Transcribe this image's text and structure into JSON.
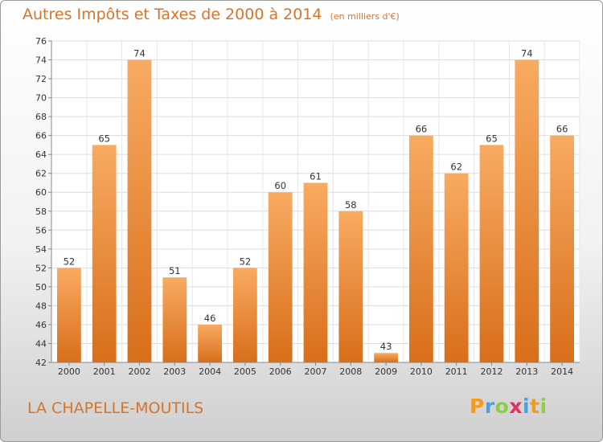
{
  "chart_data": {
    "type": "bar",
    "title": "Autres Impôts et Taxes de 2000 à 2014",
    "subtitle": "(en milliers d'€)",
    "categories": [
      "2000",
      "2001",
      "2002",
      "2003",
      "2004",
      "2005",
      "2006",
      "2007",
      "2008",
      "2009",
      "2010",
      "2011",
      "2012",
      "2013",
      "2014"
    ],
    "values": [
      52,
      65,
      74,
      51,
      46,
      52,
      60,
      61,
      58,
      43,
      66,
      62,
      65,
      74,
      66
    ],
    "ylim": [
      42,
      76
    ],
    "y_ticks": [
      42,
      44,
      46,
      48,
      50,
      52,
      54,
      56,
      58,
      60,
      62,
      64,
      66,
      68,
      70,
      72,
      74,
      76
    ],
    "grid": true,
    "bar_color": "#f0903a",
    "bar_color_light": "#f8ab62",
    "bar_color_dark": "#d86e1a"
  },
  "place_name": "LA CHAPELLE-MOUTILS",
  "logo": {
    "text": "Proxiti",
    "letters": [
      {
        "char": "P",
        "color": "#f39a1f"
      },
      {
        "char": "r",
        "color": "#4aa2dd"
      },
      {
        "char": "o",
        "color": "#8ccf3f"
      },
      {
        "char": "x",
        "color": "#e2315f"
      },
      {
        "char": "i",
        "color": "#4aa2dd"
      },
      {
        "char": "t",
        "color": "#f39a1f"
      },
      {
        "char": "i",
        "color": "#8ccf3f"
      }
    ]
  }
}
